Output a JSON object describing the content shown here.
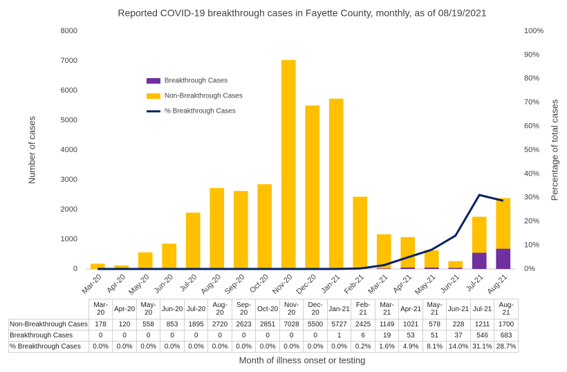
{
  "chart_data": {
    "type": "bar",
    "title": "Reported COVID-19 breakthrough cases in Fayette County, monthly, as of 08/19/2021",
    "x_label": "Month of illness onset or testing",
    "y_label": "Number of cases",
    "y2_label": "Percentage of total cases",
    "categories": [
      "Mar-20",
      "Apr-20",
      "May-20",
      "Jun-20",
      "Jul-20",
      "Aug-20",
      "Sep-20",
      "Oct-20",
      "Nov-20",
      "Dec-20",
      "Jan-21",
      "Feb-21",
      "Mar-21",
      "Apr-21",
      "May-21",
      "Jun-21",
      "Jul-21",
      "Aug-21"
    ],
    "stacked": true,
    "series": [
      {
        "name": "Breakthrough Cases",
        "color": "#7030a0",
        "values": [
          0,
          0,
          0,
          0,
          0,
          0,
          0,
          0,
          0,
          0,
          1,
          6,
          19,
          53,
          51,
          37,
          546,
          683
        ]
      },
      {
        "name": "Non-Breakthrough Cases",
        "color": "#ffc000",
        "values": [
          178,
          120,
          558,
          853,
          1895,
          2720,
          2623,
          2851,
          7028,
          5500,
          5727,
          2425,
          1149,
          1021,
          578,
          228,
          1211,
          1700
        ]
      },
      {
        "name": "% Breakthrough Cases",
        "color": "#002060",
        "type": "line",
        "axis": "y2",
        "values": [
          0.0,
          0.0,
          0.0,
          0.0,
          0.0,
          0.0,
          0.0,
          0.0,
          0.0,
          0.0,
          0.0,
          0.2,
          1.6,
          4.9,
          8.1,
          14.0,
          31.1,
          28.7
        ],
        "value_labels": [
          "0.0%",
          "0.0%",
          "0.0%",
          "0.0%",
          "0.0%",
          "0.0%",
          "0.0%",
          "0.0%",
          "0.0%",
          "0.0%",
          "0.0%",
          "0.2%",
          "1.6%",
          "4.9%",
          "8.1%",
          "14.0%",
          "31.1%",
          "28.7%"
        ]
      }
    ],
    "table_rows": [
      "Non-Breakthrough Cases",
      "Breakthrough Cases",
      "% Breakthrough Cases"
    ],
    "ylim": [
      0,
      8000
    ],
    "yticks": [
      0,
      1000,
      2000,
      3000,
      4000,
      5000,
      6000,
      7000,
      8000
    ],
    "y2lim": [
      0,
      100
    ],
    "y2ticks": [
      {
        "value": 0,
        "label": "0%"
      },
      {
        "value": 10,
        "label": "10%"
      },
      {
        "value": 20,
        "label": "20%"
      },
      {
        "value": 30,
        "label": "30%"
      },
      {
        "value": 40,
        "label": "40%"
      },
      {
        "value": 50,
        "label": "50%"
      },
      {
        "value": 60,
        "label": "60%"
      },
      {
        "value": 70,
        "label": "70%"
      },
      {
        "value": 80,
        "label": "80%"
      },
      {
        "value": 90,
        "label": "90%"
      },
      {
        "value": 100,
        "label": "100%"
      }
    ],
    "legend": "upper-left",
    "grid": false
  }
}
